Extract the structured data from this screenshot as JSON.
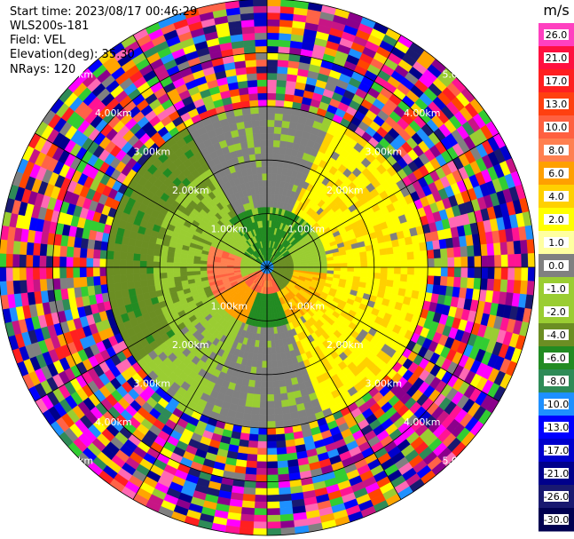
{
  "info": {
    "start_time": "Start time: 2023/08/17 00:46:29",
    "site": "WLS200s-181",
    "field": "Field: VEL",
    "elevation": "Elevation(deg): 35.30",
    "nrays": "NRays: 120"
  },
  "chart_data": {
    "type": "heatmap",
    "projection": "polar-ppi",
    "field": "VEL",
    "units": "m/s",
    "range_rings_km": [
      1,
      2,
      3,
      4,
      5
    ],
    "ring_labels": [
      "1.00km",
      "2.00km",
      "3.00km",
      "4.00km",
      "5.00km"
    ],
    "max_range_km": 5.0,
    "rays": 120,
    "colorbar": {
      "title": "m/s",
      "ticks": [
        "26.0",
        "21.0",
        "17.0",
        "13.0",
        "10.0",
        "8.0",
        "6.0",
        "4.0",
        "2.0",
        "1.0",
        "0.0",
        "-1.0",
        "-2.0",
        "-4.0",
        "-6.0",
        "-8.0",
        "-10.0",
        "-13.0",
        "-17.0",
        "-21.0",
        "-26.0",
        "-30.0"
      ],
      "colors": [
        "#ff40c0",
        "#ff1040",
        "#ff2020",
        "#ff4010",
        "#ff6040",
        "#ff8050",
        "#ffa000",
        "#ffd000",
        "#ffff00",
        "#ffffa0",
        "#808080",
        "#9acd32",
        "#9acd32",
        "#6b8e23",
        "#228b22",
        "#2e8b57",
        "#1e90ff",
        "#0000ff",
        "#0000cd",
        "#00008b",
        "#191970",
        "#000050"
      ]
    },
    "approx_field_description_regions": [
      {
        "range_km": [
          0,
          1.0
        ],
        "azimuth_deg": [
          300,
          60
        ],
        "velocity_ms": -6.0
      },
      {
        "range_km": [
          0,
          1.0
        ],
        "azimuth_deg": [
          180,
          240
        ],
        "velocity_ms": 8.0
      },
      {
        "range_km": [
          1.0,
          2.5
        ],
        "azimuth_deg": [
          20,
          160
        ],
        "velocity_ms": 4.0
      },
      {
        "range_km": [
          1.0,
          2.8
        ],
        "azimuth_deg": [
          200,
          340
        ],
        "velocity_ms": -2.0
      },
      {
        "range_km": [
          1.5,
          3.0
        ],
        "azimuth_deg": [
          330,
          30
        ],
        "velocity_ms": 0.0
      },
      {
        "range_km": [
          1.5,
          3.0
        ],
        "azimuth_deg": [
          150,
          210
        ],
        "velocity_ms": 0.0
      },
      {
        "range_km": [
          2.8,
          3.4
        ],
        "azimuth_deg": [
          230,
          320
        ],
        "velocity_ms": -4.0
      },
      {
        "range_km": [
          3.4,
          5.0
        ],
        "azimuth_deg": [
          0,
          360
        ],
        "velocity_ms": "noise"
      }
    ]
  }
}
